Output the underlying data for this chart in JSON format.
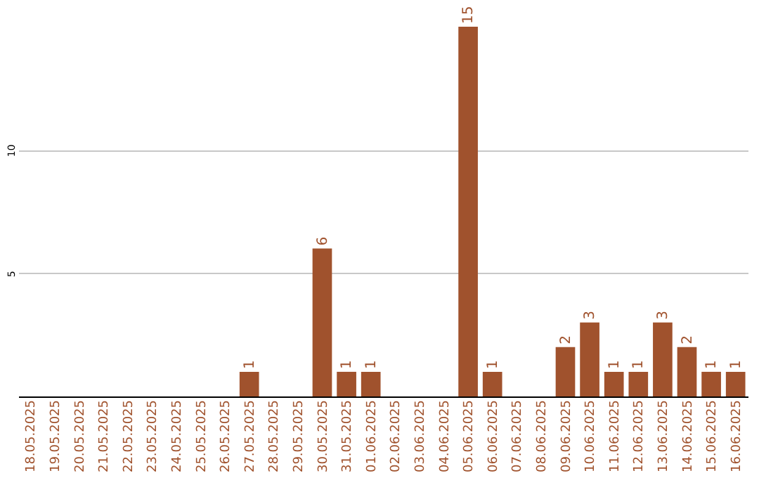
{
  "chart_data": {
    "type": "bar",
    "categories": [
      "18.05.2025",
      "19.05.2025",
      "20.05.2025",
      "21.05.2025",
      "22.05.2025",
      "23.05.2025",
      "24.05.2025",
      "25.05.2025",
      "26.05.2025",
      "27.05.2025",
      "28.05.2025",
      "29.05.2025",
      "30.05.2025",
      "31.05.2025",
      "01.06.2025",
      "02.06.2025",
      "03.06.2025",
      "04.06.2025",
      "05.06.2025",
      "06.06.2025",
      "07.06.2025",
      "08.06.2025",
      "09.06.2025",
      "10.06.2025",
      "11.06.2025",
      "12.06.2025",
      "13.06.2025",
      "14.06.2025",
      "15.06.2025",
      "16.06.2025"
    ],
    "values": [
      0,
      0,
      0,
      0,
      0,
      0,
      0,
      0,
      0,
      1,
      0,
      0,
      6,
      1,
      1,
      0,
      0,
      0,
      15,
      1,
      0,
      0,
      2,
      3,
      1,
      1,
      3,
      2,
      1,
      1
    ],
    "value_labels": [
      null,
      null,
      null,
      null,
      null,
      null,
      null,
      null,
      null,
      "1",
      null,
      null,
      "6",
      "1",
      "1",
      null,
      null,
      null,
      "15",
      "1",
      null,
      null,
      "2",
      "3",
      "1",
      "1",
      "3",
      "2",
      "1",
      "1"
    ],
    "color": "#a0522d",
    "ylim": [
      0,
      15
    ],
    "yticks": [
      5,
      10
    ],
    "grid": "y"
  }
}
